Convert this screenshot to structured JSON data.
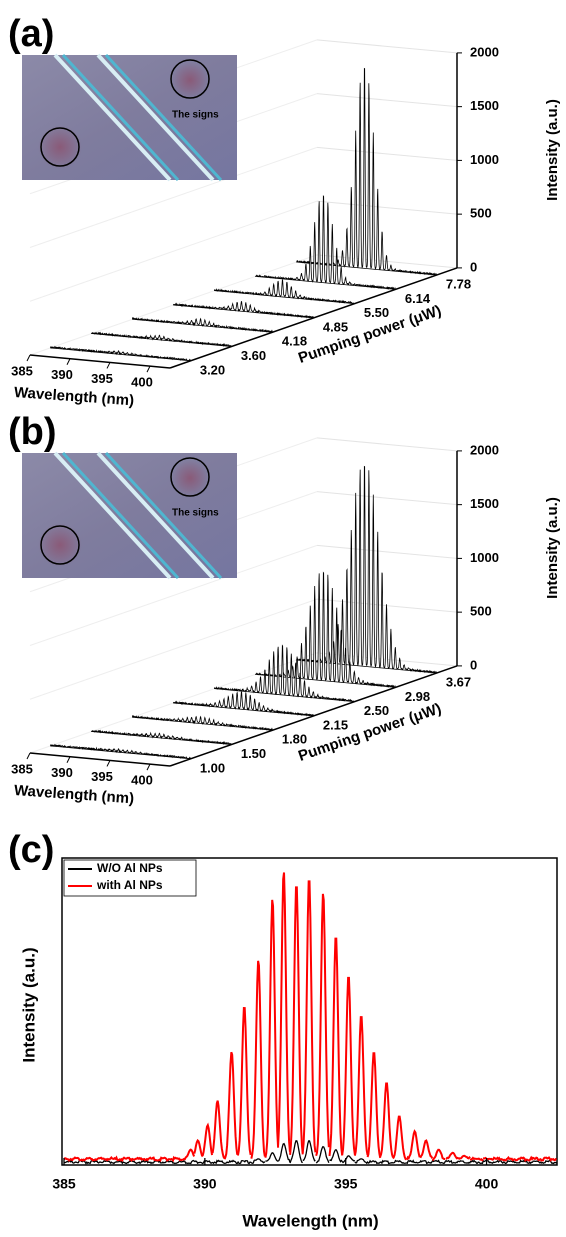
{
  "chart_data": [
    {
      "type": "waterfall",
      "panel_label": "(a)",
      "inset_text": "The signs",
      "xlabel": "Wavelength (nm)",
      "ylabel": "Pumping power (μW)",
      "zlabel": "Intensity (a.u.)",
      "xlim": [
        385,
        402.5
      ],
      "xticks": [
        385,
        390,
        395,
        400
      ],
      "categories": [
        "3.20",
        "3.60",
        "4.18",
        "4.85",
        "5.50",
        "6.14",
        "7.78"
      ],
      "values": [
        20,
        30,
        50,
        80,
        150,
        800,
        1850
      ],
      "zlim": [
        0,
        2000
      ],
      "zticks": [
        0,
        500,
        1000,
        1500,
        2000
      ],
      "color": "#000000"
    },
    {
      "type": "waterfall",
      "panel_label": "(b)",
      "inset_text": "The signs",
      "xlabel": "Wavelength (nm)",
      "ylabel": "Pumping power (μW)",
      "zlabel": "Intensity (a.u.)",
      "xlim": [
        385,
        402.5
      ],
      "xticks": [
        385,
        390,
        395,
        400
      ],
      "categories": [
        "1.00",
        "1.50",
        "1.80",
        "2.15",
        "2.50",
        "2.98",
        "3.67"
      ],
      "values": [
        20,
        30,
        50,
        150,
        450,
        1000,
        1850
      ],
      "zlim": [
        0,
        2000
      ],
      "zticks": [
        0,
        500,
        1000,
        1500,
        2000
      ],
      "color": "#000000"
    },
    {
      "type": "spectra",
      "panel_label": "(c)",
      "xlabel": "Wavelength (nm)",
      "ylabel": "Intensity (a.u.)",
      "xlim": [
        385,
        402.5
      ],
      "xticks": [
        385,
        390,
        395,
        400
      ],
      "ylim": [
        0,
        1
      ],
      "series": [
        {
          "name": "W/O Al NPs",
          "color": "#000000",
          "x": [
            391.9,
            392.4,
            392.8,
            393.25,
            393.7,
            394.2,
            394.65,
            395.1,
            395.55
          ],
          "values": [
            0.02,
            0.04,
            0.07,
            0.08,
            0.08,
            0.06,
            0.05,
            0.03,
            0.02
          ]
        },
        {
          "name": "with Al NPs",
          "color": "#ff0000",
          "x": [
            389.5,
            389.75,
            390.1,
            390.45,
            390.95,
            391.4,
            391.9,
            392.4,
            392.8,
            393.25,
            393.7,
            394.2,
            394.65,
            395.1,
            395.55,
            396.0,
            396.45,
            396.9,
            397.45,
            397.85,
            398.3,
            398.8,
            399.2,
            399.65,
            400.1
          ],
          "values": [
            0.05,
            0.08,
            0.13,
            0.21,
            0.37,
            0.52,
            0.67,
            0.87,
            0.96,
            0.92,
            0.94,
            0.89,
            0.75,
            0.62,
            0.49,
            0.37,
            0.27,
            0.16,
            0.11,
            0.08,
            0.05,
            0.04,
            0.03,
            0.02,
            0.02
          ]
        }
      ]
    }
  ]
}
